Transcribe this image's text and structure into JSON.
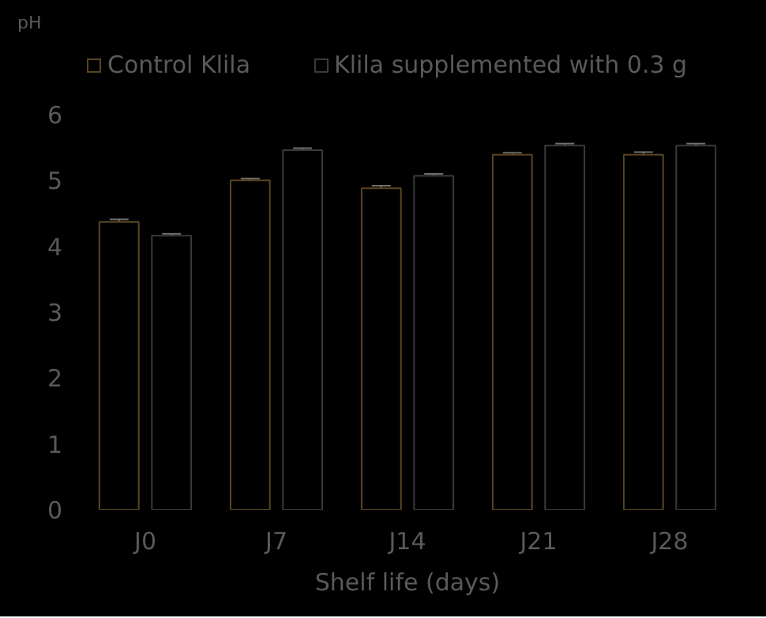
{
  "chart_data": {
    "type": "bar",
    "xlabel": "Shelf life (days)",
    "ylabel": "pH",
    "categories": [
      "J0",
      "J7",
      "J14",
      "J21",
      "J28"
    ],
    "series": [
      {
        "name": "Control Klila",
        "color": "#000000",
        "values": [
          4.37,
          5.0,
          4.88,
          5.39,
          5.39
        ],
        "errors": [
          0.04,
          0.03,
          0.04,
          0.03,
          0.04
        ]
      },
      {
        "name": "Klila supplemented with 0.3 g",
        "color": "#000000",
        "values": [
          4.16,
          5.46,
          5.07,
          5.53,
          5.53
        ],
        "errors": [
          0.03,
          0.03,
          0.03,
          0.03,
          0.03
        ]
      }
    ],
    "ylim": [
      0,
      6
    ],
    "yticks": [
      0,
      1,
      2,
      3,
      4,
      5,
      6
    ],
    "grid": false,
    "legend": "top"
  }
}
